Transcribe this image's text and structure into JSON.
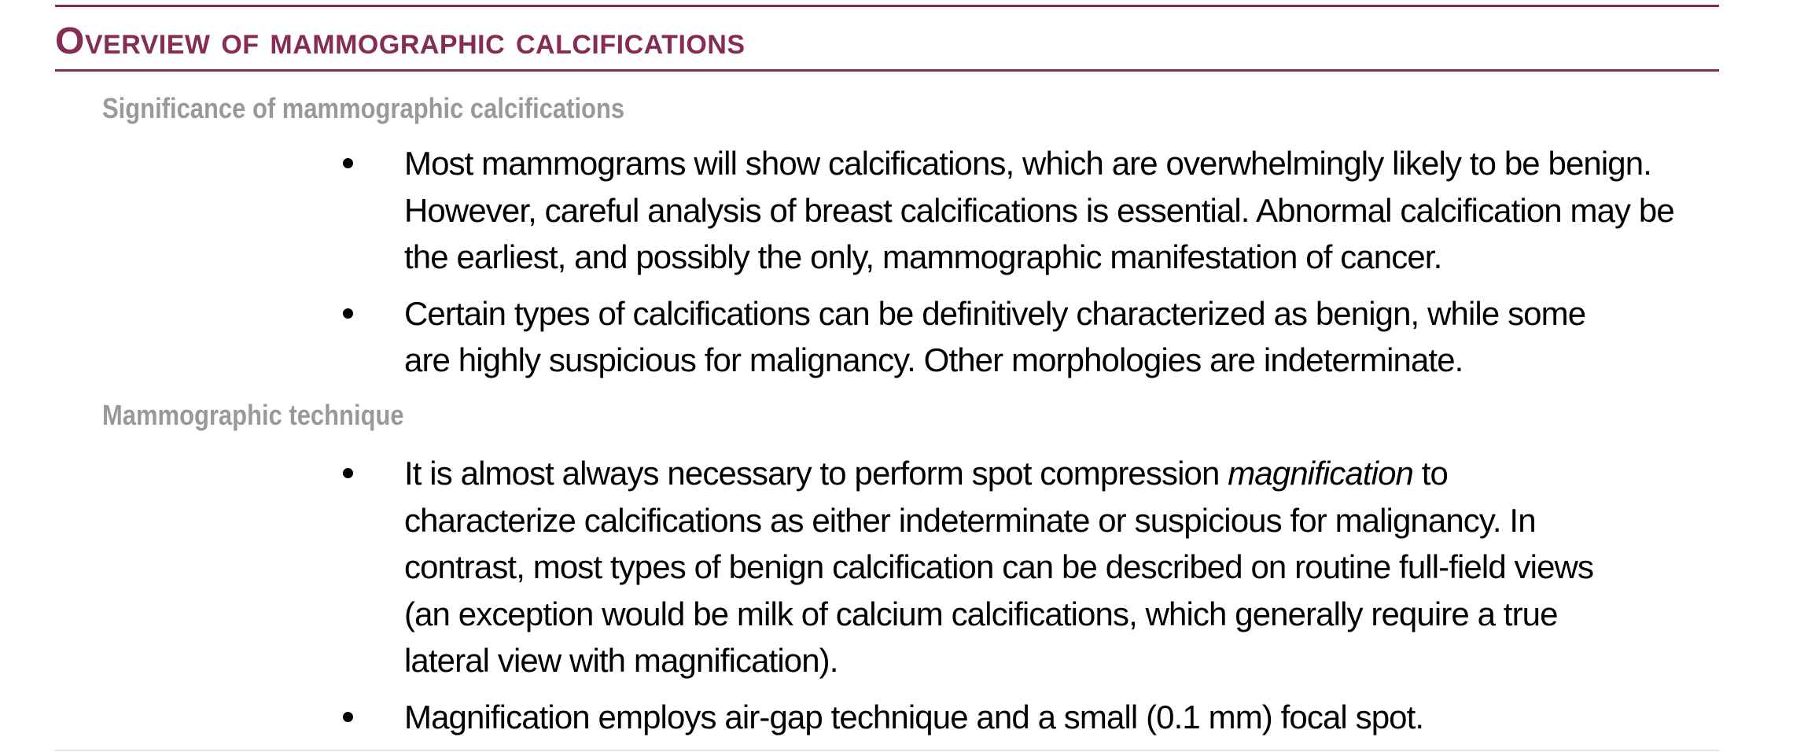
{
  "document": {
    "title": "Overview of mammographic calcifications",
    "colors": {
      "accent": "#852c55",
      "subheading": "#999999",
      "text": "#000000"
    },
    "sections": [
      {
        "heading": "Significance of mammographic calcifications",
        "bullets": [
          {
            "lines": [
              "Most mammograms will show calcifications, which are overwhelmingly likely to be benign.",
              "However, careful analysis of breast calcifications is essential. Abnormal calcification may be",
              "the earliest, and possibly the only, mammographic manifestation of cancer."
            ]
          },
          {
            "lines": [
              "Certain types of calcifications can be definitively characterized as benign, while some",
              "are highly suspicious for malignancy. Other morphologies are indeterminate."
            ]
          }
        ]
      },
      {
        "heading": "Mammographic technique",
        "bullets": [
          {
            "line1_before": "It is almost always necessary to perform spot compression ",
            "line1_emphasis": "magnification",
            "line1_after": " to",
            "lines": [
              "characterize calcifications as either indeterminate or suspicious for malignancy. In",
              "contrast, most types of benign calcification can be described on routine full-field views",
              "(an exception would be milk of calcium calcifications, which generally require a true",
              "lateral view with magnification)."
            ]
          },
          {
            "lines": [
              "Magnification employs air-gap technique and a small (0.1 mm) focal spot."
            ]
          }
        ]
      }
    ]
  }
}
